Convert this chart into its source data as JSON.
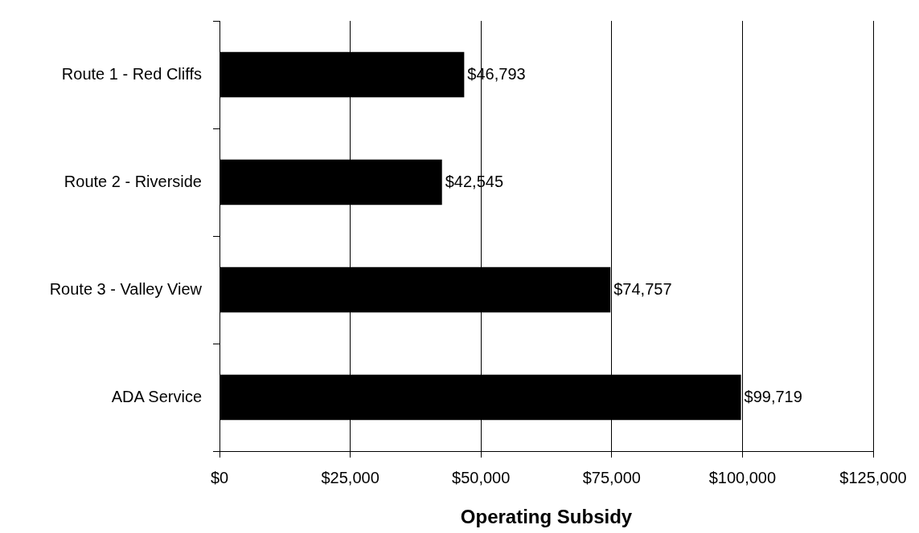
{
  "chart_data": {
    "type": "bar",
    "orientation": "horizontal",
    "xlabel": "Operating Subsidy",
    "categories": [
      "Route 1 - Red Cliffs",
      "Route 2 - Riverside",
      "Route 3 - Valley View",
      "ADA Service"
    ],
    "values": [
      46793,
      42545,
      74757,
      99719
    ],
    "color": "#000000",
    "value_labels": [
      "$46,793",
      "$42,545",
      "$74,757",
      "$99,719"
    ],
    "xlim": [
      0,
      125000
    ],
    "xticks": [
      {
        "value": 0,
        "label": "$0"
      },
      {
        "value": 25000,
        "label": "$25,000"
      },
      {
        "value": 50000,
        "label": "$50,000"
      },
      {
        "value": 75000,
        "label": "$75,000"
      },
      {
        "value": 100000,
        "label": "$100,000"
      },
      {
        "value": 125000,
        "label": "$125,000"
      }
    ],
    "grid": "x",
    "legend": false
  }
}
